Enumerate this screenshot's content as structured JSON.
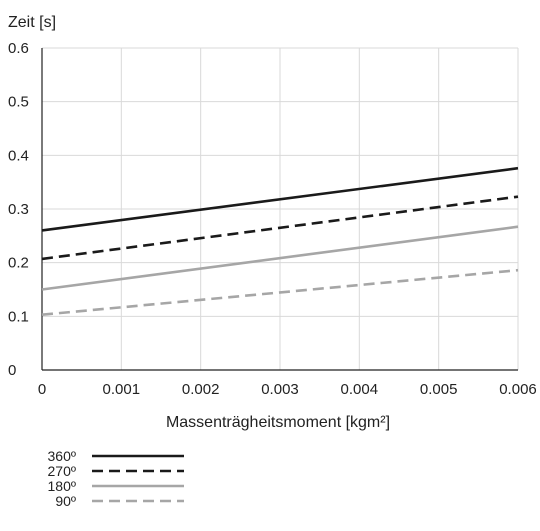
{
  "chart_data": {
    "type": "line",
    "title": "",
    "xlabel": "Massenträgheitsmoment [kgm²]",
    "ylabel": "Zeit [s]",
    "xlim": [
      0,
      0.006
    ],
    "ylim": [
      0,
      0.6
    ],
    "x_ticks": [
      0,
      0.001,
      0.002,
      0.003,
      0.004,
      0.005,
      0.006
    ],
    "x_tick_labels": [
      "0",
      "0.001",
      "0.002",
      "0.003",
      "0.004",
      "0.005",
      "0.006"
    ],
    "y_ticks": [
      0,
      0.1,
      0.2,
      0.3,
      0.4,
      0.5,
      0.6
    ],
    "y_tick_labels": [
      "0",
      "0.1",
      "0.2",
      "0.3",
      "0.4",
      "0.5",
      "0.6"
    ],
    "grid": true,
    "legend_position": "bottom-left",
    "series": [
      {
        "name": "360º",
        "x": [
          0,
          0.006
        ],
        "y": [
          0.26,
          0.376
        ],
        "color": "#1a1a1a",
        "style": "solid"
      },
      {
        "name": "270º",
        "x": [
          0,
          0.006
        ],
        "y": [
          0.207,
          0.323
        ],
        "color": "#1a1a1a",
        "style": "dashed"
      },
      {
        "name": "180º",
        "x": [
          0,
          0.006
        ],
        "y": [
          0.15,
          0.267
        ],
        "color": "#a6a6a6",
        "style": "solid"
      },
      {
        "name": "90º",
        "x": [
          0,
          0.006
        ],
        "y": [
          0.103,
          0.186
        ],
        "color": "#a6a6a6",
        "style": "dashed"
      }
    ]
  }
}
